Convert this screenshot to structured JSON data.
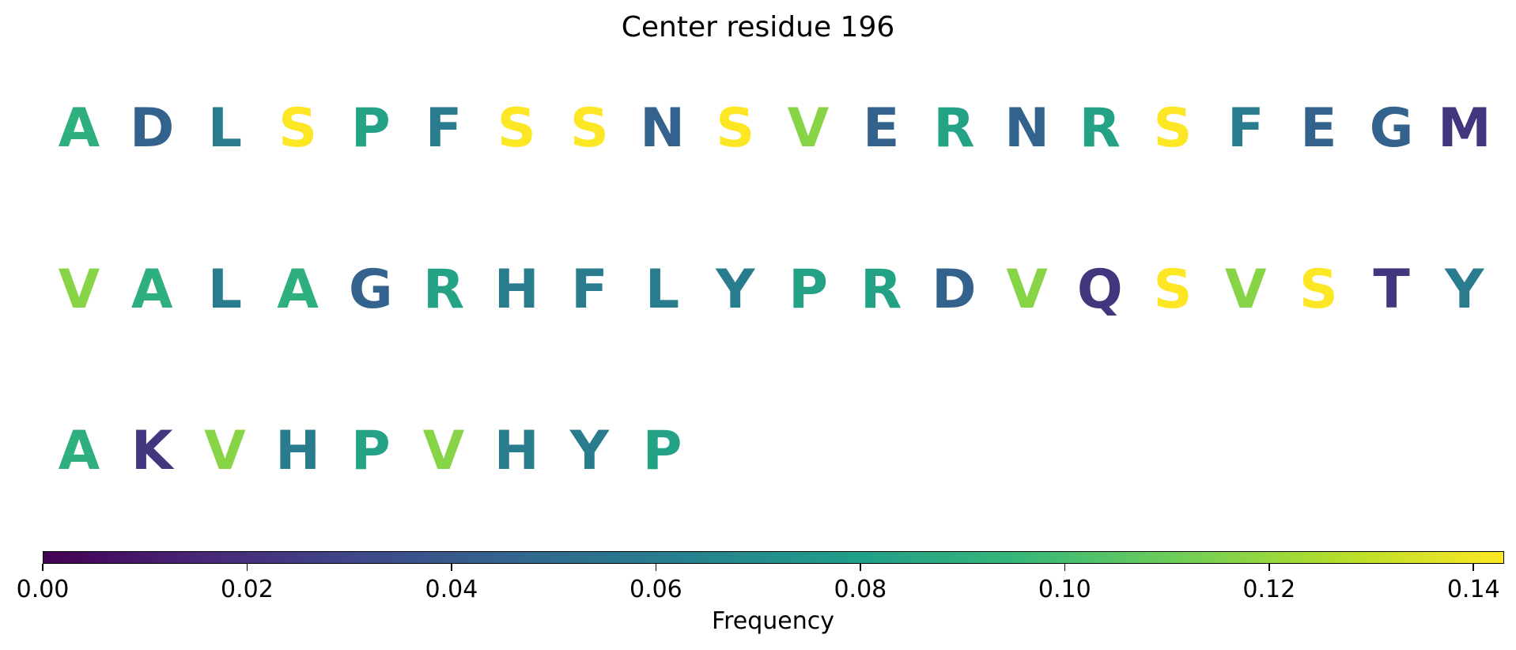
{
  "chart_data": {
    "type": "sequence-logo",
    "title": "Center residue 196",
    "colormap": "viridis",
    "residues": [
      {
        "letter": "A",
        "freq": 0.09
      },
      {
        "letter": "D",
        "freq": 0.045
      },
      {
        "letter": "L",
        "freq": 0.06
      },
      {
        "letter": "S",
        "freq": 0.143
      },
      {
        "letter": "P",
        "freq": 0.082
      },
      {
        "letter": "F",
        "freq": 0.06
      },
      {
        "letter": "S",
        "freq": 0.143
      },
      {
        "letter": "S",
        "freq": 0.143
      },
      {
        "letter": "N",
        "freq": 0.045
      },
      {
        "letter": "S",
        "freq": 0.143
      },
      {
        "letter": "V",
        "freq": 0.117
      },
      {
        "letter": "E",
        "freq": 0.045
      },
      {
        "letter": "R",
        "freq": 0.082
      },
      {
        "letter": "N",
        "freq": 0.045
      },
      {
        "letter": "R",
        "freq": 0.082
      },
      {
        "letter": "S",
        "freq": 0.143
      },
      {
        "letter": "F",
        "freq": 0.06
      },
      {
        "letter": "E",
        "freq": 0.045
      },
      {
        "letter": "G",
        "freq": 0.045
      },
      {
        "letter": "M",
        "freq": 0.022
      },
      {
        "letter": "V",
        "freq": 0.117
      },
      {
        "letter": "A",
        "freq": 0.09
      },
      {
        "letter": "L",
        "freq": 0.06
      },
      {
        "letter": "A",
        "freq": 0.09
      },
      {
        "letter": "G",
        "freq": 0.045
      },
      {
        "letter": "R",
        "freq": 0.082
      },
      {
        "letter": "H",
        "freq": 0.06
      },
      {
        "letter": "F",
        "freq": 0.06
      },
      {
        "letter": "L",
        "freq": 0.06
      },
      {
        "letter": "Y",
        "freq": 0.06
      },
      {
        "letter": "P",
        "freq": 0.082
      },
      {
        "letter": "R",
        "freq": 0.082
      },
      {
        "letter": "D",
        "freq": 0.045
      },
      {
        "letter": "V",
        "freq": 0.117
      },
      {
        "letter": "Q",
        "freq": 0.022
      },
      {
        "letter": "S",
        "freq": 0.143
      },
      {
        "letter": "V",
        "freq": 0.117
      },
      {
        "letter": "S",
        "freq": 0.143
      },
      {
        "letter": "T",
        "freq": 0.022
      },
      {
        "letter": "Y",
        "freq": 0.06
      },
      {
        "letter": "A",
        "freq": 0.09
      },
      {
        "letter": "K",
        "freq": 0.022
      },
      {
        "letter": "V",
        "freq": 0.117
      },
      {
        "letter": "H",
        "freq": 0.06
      },
      {
        "letter": "P",
        "freq": 0.082
      },
      {
        "letter": "V",
        "freq": 0.117
      },
      {
        "letter": "H",
        "freq": 0.06
      },
      {
        "letter": "Y",
        "freq": 0.06
      },
      {
        "letter": "P",
        "freq": 0.082
      }
    ],
    "colorbar": {
      "label": "Frequency",
      "range": [
        0.0,
        0.143
      ],
      "ticks": [
        0.0,
        0.02,
        0.04,
        0.06,
        0.08,
        0.1,
        0.12,
        0.14
      ],
      "tick_labels": [
        "0.00",
        "0.02",
        "0.04",
        "0.06",
        "0.08",
        "0.10",
        "0.12",
        "0.14"
      ]
    }
  }
}
